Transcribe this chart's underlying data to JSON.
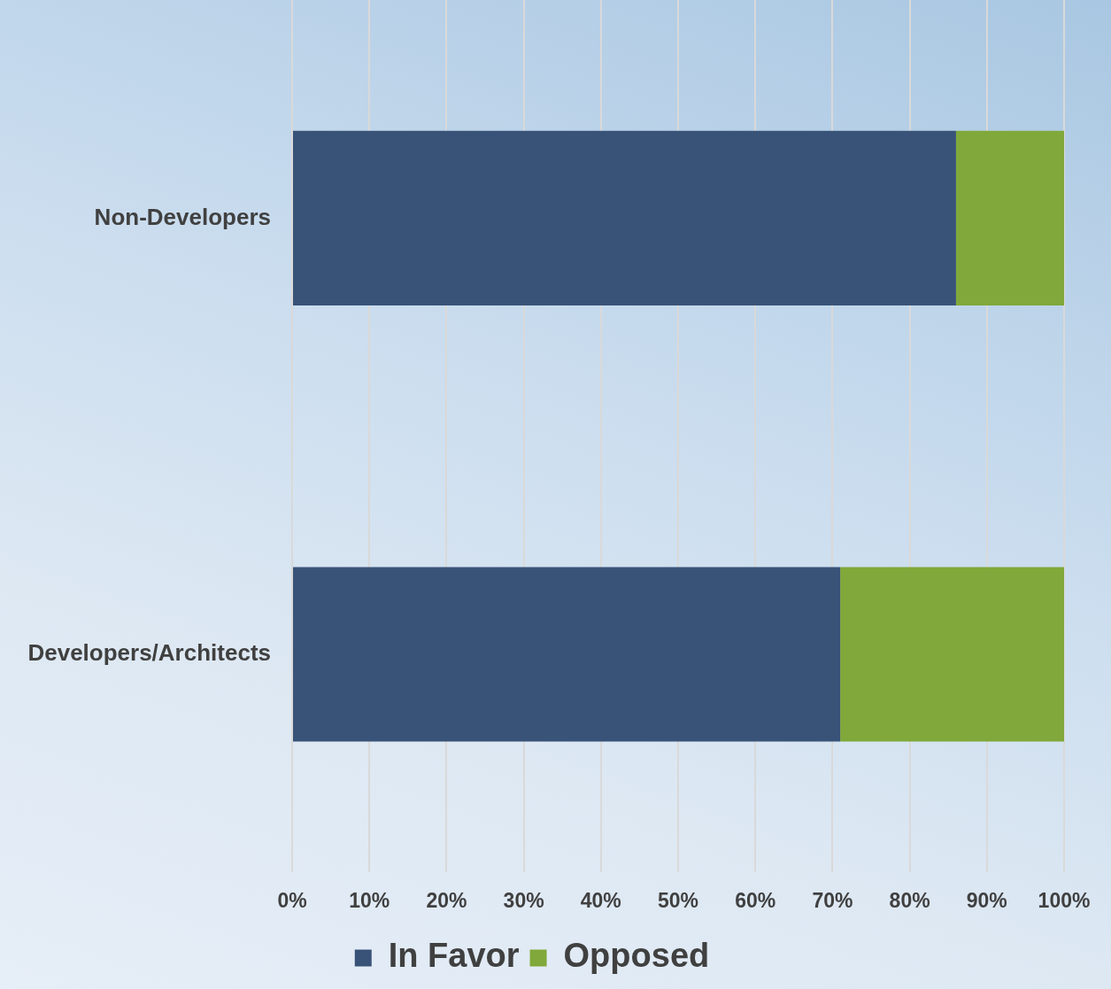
{
  "chart_data": {
    "type": "bar",
    "orientation": "horizontal",
    "stacked": true,
    "categories": [
      "Non-Developers",
      "Developers/Architects"
    ],
    "series": [
      {
        "name": "In Favor",
        "color": "#395378",
        "values": [
          86,
          71
        ]
      },
      {
        "name": "Opposed",
        "color": "#80a83a",
        "values": [
          14,
          29
        ]
      }
    ],
    "xlim": [
      0,
      100
    ],
    "xticks": [
      {
        "value": 0,
        "label": "0%"
      },
      {
        "value": 10,
        "label": "10%"
      },
      {
        "value": 20,
        "label": "20%"
      },
      {
        "value": 30,
        "label": "30%"
      },
      {
        "value": 40,
        "label": "40%"
      },
      {
        "value": 50,
        "label": "50%"
      },
      {
        "value": 60,
        "label": "60%"
      },
      {
        "value": 70,
        "label": "70%"
      },
      {
        "value": 80,
        "label": "80%"
      },
      {
        "value": 90,
        "label": "90%"
      },
      {
        "value": 100,
        "label": "100%"
      }
    ],
    "grid": "x",
    "legend": "bottom"
  }
}
